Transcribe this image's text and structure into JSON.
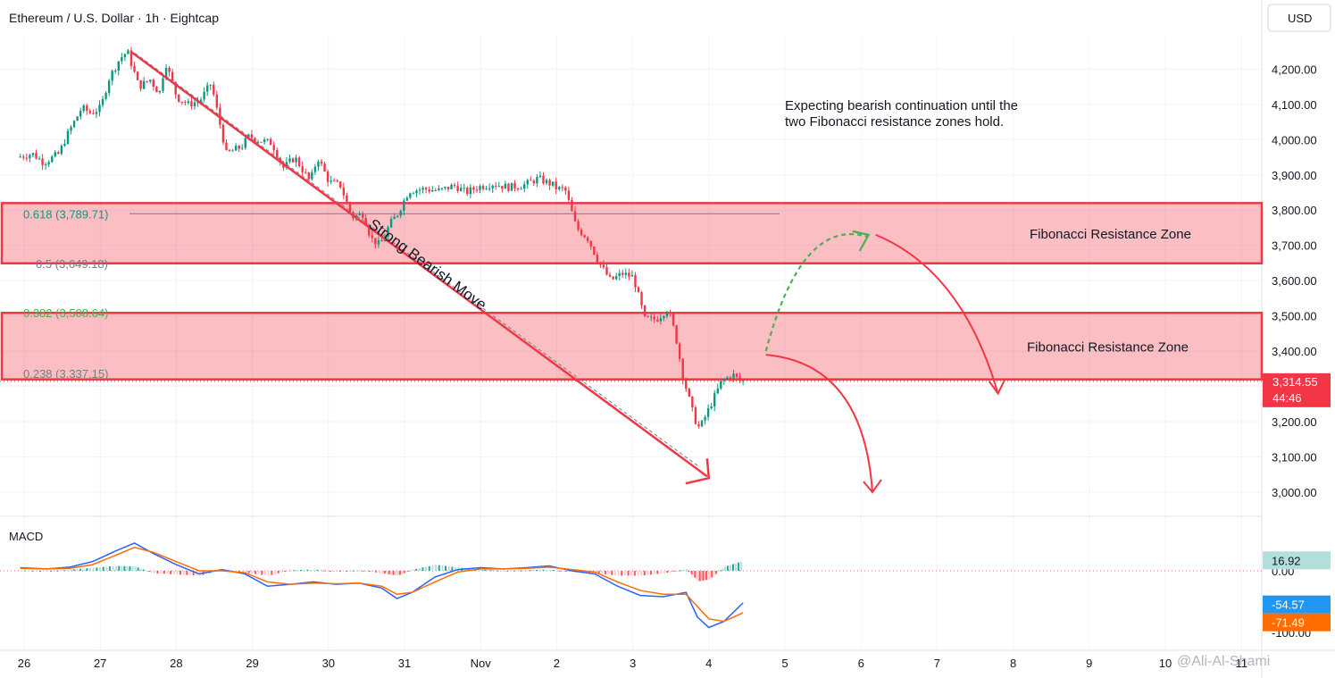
{
  "header": {
    "symbol_title": "Ethereum / U.S. Dollar · 1h · Eightcap",
    "currency": "USD"
  },
  "chart_data": [
    {
      "type": "candlestick",
      "title": "Ethereum / U.S. Dollar · 1h · Eightcap",
      "xlabel": "",
      "ylabel": "",
      "x_tick_labels": [
        "26",
        "27",
        "28",
        "29",
        "30",
        "31",
        "Nov",
        "2",
        "3",
        "4",
        "5",
        "6",
        "7",
        "8",
        "9",
        "10",
        "11"
      ],
      "y_tick_labels": [
        "3,000.00",
        "3,100.00",
        "3,200.00",
        "3,300.00",
        "3,400.00",
        "3,500.00",
        "3,600.00",
        "3,700.00",
        "3,800.00",
        "3,900.00",
        "4,000.00",
        "4,100.00",
        "4,200.00"
      ],
      "ylim": [
        2990,
        4320
      ],
      "grid": true,
      "last_price": {
        "value": 3314.55,
        "label": "3,314.55",
        "countdown": "44:46"
      },
      "price_path": {
        "day": [
          25.95,
          26.15,
          26.3,
          26.5,
          26.6,
          26.8,
          26.92,
          27.05,
          27.15,
          27.3,
          27.4,
          27.55,
          27.7,
          27.82,
          27.9,
          28.05,
          28.2,
          28.35,
          28.5,
          28.7,
          28.9,
          29.0,
          29.1,
          29.3,
          29.45,
          29.6,
          29.8,
          29.9,
          30.05,
          30.2,
          30.35,
          30.5,
          30.6,
          30.72,
          30.85,
          30.95,
          31.1,
          31.3,
          31.5,
          31.7,
          31.85,
          32.0,
          32.2,
          32.4,
          32.6,
          32.8,
          33.0,
          33.05,
          33.15,
          33.3,
          33.45,
          33.6,
          33.75,
          33.9,
          34.05,
          34.2,
          34.35,
          34.5,
          34.6,
          34.7,
          34.85,
          34.92,
          35.05,
          35.2,
          35.35,
          35.45
        ],
        "price": [
          3950,
          3960,
          3935,
          3960,
          4010,
          4090,
          4075,
          4090,
          4170,
          4230,
          4250,
          4150,
          4170,
          4130,
          4220,
          4120,
          4100,
          4110,
          4160,
          3960,
          3980,
          4010,
          4000,
          3990,
          3920,
          3950,
          3880,
          3950,
          3880,
          3870,
          3780,
          3790,
          3720,
          3700,
          3760,
          3790,
          3855,
          3860,
          3855,
          3870,
          3850,
          3865,
          3875,
          3865,
          3870,
          3890,
          3870,
          3860,
          3860,
          3750,
          3720,
          3650,
          3600,
          3620,
          3610,
          3490,
          3490,
          3520,
          3450,
          3330,
          3210,
          3180,
          3240,
          3310,
          3335,
          3315
        ]
      },
      "annotations": {
        "note": "Expecting bearish continuation until the two Fibonacci resistance zones hold.",
        "trend_label": "Strong Bearish Move",
        "zone_upper_label": "Fibonacci Resistance Zone",
        "zone_lower_label": "Fibonacci Resistance Zone",
        "zone_upper": [
          3649.18,
          3820
        ],
        "zone_lower": [
          3320,
          3508.64
        ],
        "horizontal_level": 3789.71,
        "trend_line": {
          "from": [
            27.4,
            4250
          ],
          "to": [
            35.0,
            3040
          ]
        },
        "curve_up": {
          "from": [
            35.75,
            3400
          ],
          "to": [
            37.1,
            3730
          ]
        },
        "curve_down_long": {
          "from": [
            37.1,
            3730
          ],
          "to": [
            38.8,
            3280
          ]
        },
        "curve_down_short": {
          "from": [
            35.75,
            3390
          ],
          "to": [
            37.15,
            3000
          ]
        },
        "fib_levels": [
          {
            "ratio": "0.618",
            "value": "3,789.71",
            "label": "0.618 (3,789.71)",
            "price": 3789.71,
            "color": "#089981"
          },
          {
            "ratio": "0.5",
            "value": "3,649.18",
            "label": "0.5 (3,649.18)",
            "price": 3649.18,
            "color": "#787b86"
          },
          {
            "ratio": "0.382",
            "value": "3,508.64",
            "label": "0.382 (3,508.64)",
            "price": 3508.64,
            "color": "#4caf50"
          },
          {
            "ratio": "0.238",
            "value": "3,337.15",
            "label": "0.238 (3,337.15)",
            "price": 3337.15,
            "color": "#787b86"
          }
        ]
      }
    },
    {
      "type": "line",
      "title": "MACD",
      "y_tick_labels": [
        "0.00",
        "-100.00"
      ],
      "ylim": [
        -116,
        72
      ],
      "series": [
        {
          "name": "",
          "color": "#2962ff",
          "x": [
            25.95,
            26.3,
            26.6,
            26.9,
            27.2,
            27.45,
            27.7,
            28.0,
            28.3,
            28.6,
            28.9,
            29.2,
            29.5,
            29.8,
            30.1,
            30.4,
            30.7,
            30.9,
            31.1,
            31.4,
            31.7,
            32.0,
            32.3,
            32.6,
            32.9,
            33.2,
            33.5,
            33.8,
            34.1,
            34.4,
            34.7,
            34.85,
            35.0,
            35.2,
            35.45
          ],
          "values": [
            5,
            3,
            6,
            15,
            32,
            45,
            28,
            10,
            -5,
            2,
            -5,
            -25,
            -22,
            -18,
            -22,
            -20,
            -28,
            -45,
            -35,
            -10,
            2,
            5,
            3,
            5,
            8,
            0,
            -5,
            -25,
            -40,
            -42,
            -35,
            -75,
            -92,
            -82,
            -52
          ]
        },
        {
          "name": "",
          "color": "#ff6d00",
          "x": [
            25.95,
            26.3,
            26.6,
            26.9,
            27.2,
            27.45,
            27.7,
            28.0,
            28.3,
            28.6,
            28.9,
            29.2,
            29.5,
            29.8,
            30.1,
            30.4,
            30.7,
            30.9,
            31.1,
            31.4,
            31.7,
            32.0,
            32.3,
            32.6,
            32.9,
            33.2,
            33.5,
            33.8,
            34.1,
            34.4,
            34.7,
            34.85,
            35.0,
            35.2,
            35.45
          ],
          "values": [
            4,
            3,
            4,
            10,
            25,
            38,
            30,
            15,
            0,
            0,
            -3,
            -18,
            -22,
            -20,
            -21,
            -20,
            -25,
            -38,
            -35,
            -18,
            -2,
            3,
            3,
            4,
            6,
            2,
            -2,
            -18,
            -32,
            -38,
            -38,
            -58,
            -78,
            -82,
            -68
          ]
        }
      ],
      "histogram": {
        "x": [
          25.95,
          26.3,
          26.6,
          26.9,
          27.2,
          27.45,
          27.7,
          28.0,
          28.3,
          28.6,
          28.9,
          29.2,
          29.5,
          29.8,
          30.1,
          30.4,
          30.7,
          30.9,
          31.1,
          31.4,
          31.7,
          32.0,
          32.3,
          32.6,
          32.9,
          33.2,
          33.5,
          33.8,
          34.1,
          34.4,
          34.7,
          34.85,
          35.0,
          35.2,
          35.45
        ],
        "values": [
          1,
          -1,
          2,
          5,
          8,
          7,
          -4,
          -6,
          -8,
          2,
          -3,
          -8,
          1,
          2,
          -1,
          1,
          -4,
          -8,
          2,
          10,
          5,
          2,
          0,
          1,
          2,
          -2,
          -4,
          -8,
          -8,
          -4,
          3,
          -17,
          -14,
          7,
          16
        ]
      },
      "value_labels": [
        {
          "text": "16.92",
          "value": 16.92,
          "color": "#b2dfdb",
          "text_color": "#131722"
        },
        {
          "text": "-54.57",
          "value": -54.57,
          "color": "#2196f3",
          "text_color": "#ffffff"
        },
        {
          "text": "-71.49",
          "value": -71.49,
          "color": "#ff6d00",
          "text_color": "#ffffff"
        }
      ]
    }
  ],
  "watermark": "@Ali-Al-Shami"
}
